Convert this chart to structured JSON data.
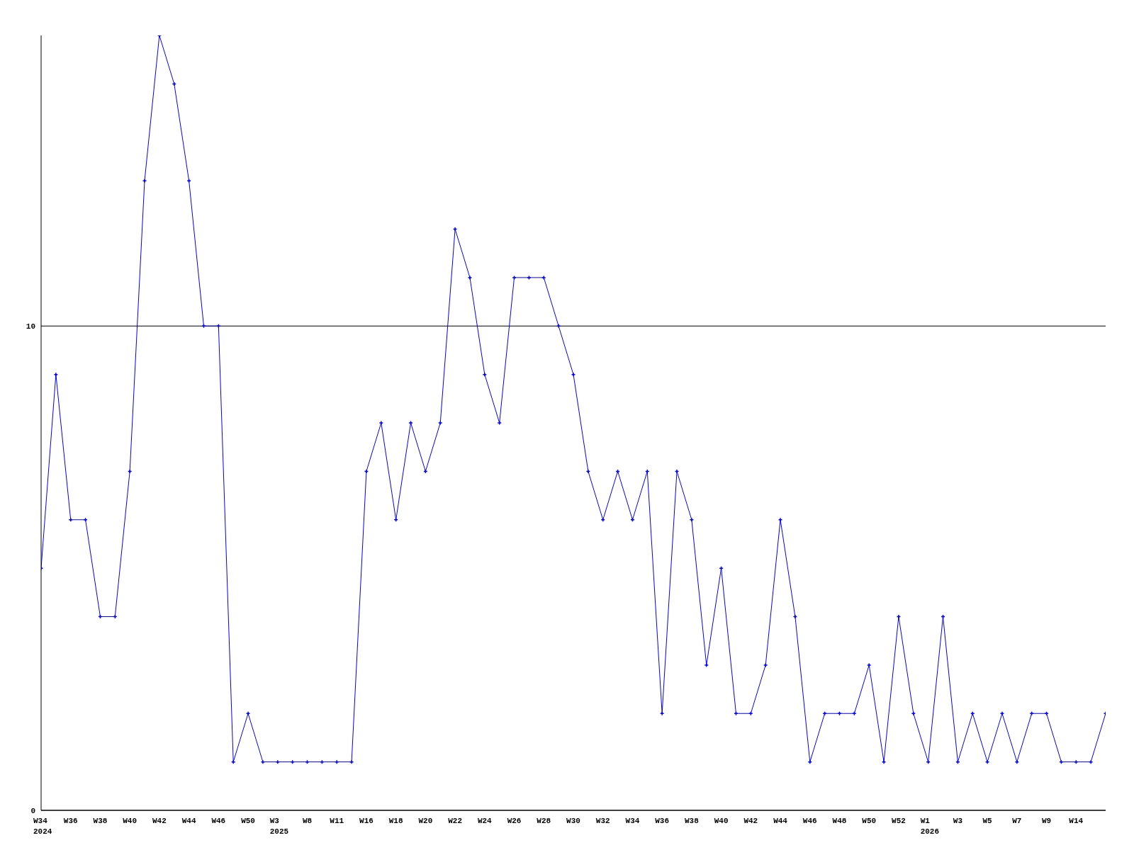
{
  "chart_data": {
    "type": "line",
    "categories": [
      "W34\n2024",
      null,
      "W36",
      null,
      "W38",
      null,
      "W40",
      null,
      "W42",
      null,
      "W44",
      null,
      "W46",
      null,
      "W50",
      null,
      "W3\n2025",
      null,
      "W8",
      null,
      "W11",
      null,
      "W16",
      null,
      "W18",
      null,
      "W20",
      null,
      "W22",
      null,
      "W24",
      null,
      "W26",
      null,
      "W28",
      null,
      "W30",
      null,
      "W32",
      null,
      "W34",
      null,
      "W36",
      null,
      "W38",
      null,
      "W40",
      null,
      "W42",
      null,
      "W44",
      null,
      "W46",
      null,
      "W48",
      null,
      "W50",
      null,
      "W52",
      null,
      "W1\n2026",
      null,
      "W3",
      null,
      "W5",
      null,
      "W7",
      null,
      "W9",
      null,
      "W14",
      null,
      null
    ],
    "series": [
      {
        "color": "#0000ff",
        "values": [
          5,
          9,
          6,
          6,
          4,
          4,
          7,
          13,
          16,
          15,
          13,
          10,
          10,
          1,
          2,
          1,
          1,
          1,
          1,
          1,
          1,
          1,
          7,
          8,
          6,
          8,
          7,
          8,
          12,
          11,
          9,
          8,
          11,
          11,
          11,
          10,
          9,
          7,
          6,
          7,
          6,
          7,
          2,
          7,
          6,
          3,
          5,
          2,
          2,
          3,
          6,
          4,
          1,
          2,
          2,
          2,
          3,
          1,
          4,
          2,
          1,
          4,
          1,
          2,
          1,
          2,
          1,
          2,
          2,
          1,
          1,
          1,
          2
        ]
      }
    ],
    "ylim": [
      0,
      16
    ],
    "yticks": [
      0,
      10
    ],
    "grid": "y",
    "marker": "cross",
    "line_style": "solid"
  }
}
